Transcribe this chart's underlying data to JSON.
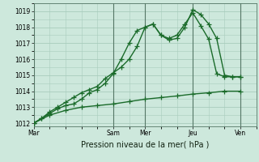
{
  "title": "",
  "xlabel": "Pression niveau de la mer( hPa )",
  "background_color": "#cde8dc",
  "grid_color": "#a8ccbc",
  "line_color": "#1a6b2a",
  "ylim": [
    1011.8,
    1019.5
  ],
  "yticks": [
    1012,
    1013,
    1014,
    1015,
    1016,
    1017,
    1018,
    1019
  ],
  "x_tick_labels": [
    "Mar",
    "Sam",
    "Mer",
    "Jeu",
    "Ven"
  ],
  "x_tick_positions": [
    0,
    40,
    56,
    80,
    104
  ],
  "xlim": [
    0,
    112
  ],
  "line1_x": [
    0,
    4,
    8,
    12,
    16,
    20,
    24,
    28,
    32,
    36,
    40,
    44,
    48,
    52,
    56,
    60,
    64,
    68,
    72,
    76,
    80,
    84,
    88,
    92,
    96,
    100,
    104
  ],
  "line1_y": [
    1012.0,
    1012.3,
    1012.6,
    1012.9,
    1013.1,
    1013.2,
    1013.5,
    1013.9,
    1014.1,
    1014.5,
    1015.1,
    1016.0,
    1017.0,
    1017.8,
    1018.0,
    1018.2,
    1017.5,
    1017.2,
    1017.3,
    1018.0,
    1019.1,
    1018.8,
    1018.2,
    1017.3,
    1015.0,
    1014.9,
    1014.9
  ],
  "line2_x": [
    0,
    4,
    8,
    12,
    16,
    20,
    24,
    28,
    32,
    36,
    40,
    44,
    48,
    52,
    56,
    60,
    64,
    68,
    72,
    76,
    80,
    84,
    88,
    92,
    96,
    100,
    104
  ],
  "line2_y": [
    1012.0,
    1012.3,
    1012.7,
    1013.0,
    1013.3,
    1013.6,
    1013.9,
    1014.1,
    1014.3,
    1014.8,
    1015.15,
    1015.5,
    1016.0,
    1016.8,
    1018.0,
    1018.2,
    1017.5,
    1017.3,
    1017.5,
    1018.2,
    1018.9,
    1018.1,
    1017.25,
    1015.1,
    1014.9,
    1014.9,
    1014.9
  ],
  "line3_x": [
    0,
    8,
    16,
    24,
    32,
    40,
    48,
    56,
    64,
    72,
    80,
    88,
    96,
    104
  ],
  "line3_y": [
    1012.0,
    1012.5,
    1012.8,
    1013.0,
    1013.1,
    1013.2,
    1013.35,
    1013.5,
    1013.6,
    1013.7,
    1013.82,
    1013.9,
    1014.0,
    1014.0
  ],
  "minor_grid_step": 8,
  "marker_size": 2.5,
  "linewidth": 1.0
}
